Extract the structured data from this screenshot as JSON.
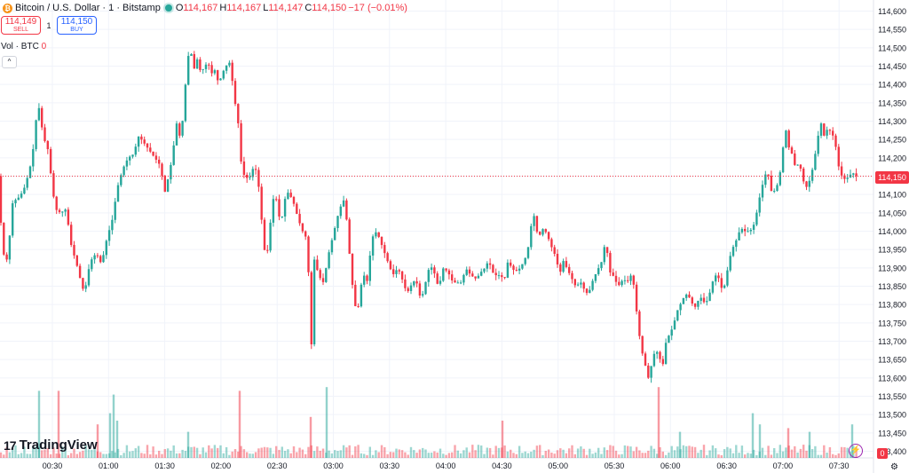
{
  "header": {
    "symbol": "Bitcoin / U.S. Dollar · 1 · Bitstamp",
    "coin_icon": "bitcoin-icon",
    "open_label": "O",
    "open": "114,167",
    "high_label": "H",
    "high": "114,167",
    "low_label": "L",
    "low": "114,147",
    "close_label": "C",
    "close": "114,150",
    "change": "−17 (−0.01%)"
  },
  "trade": {
    "sell_price": "114,149",
    "sell_label": "SELL",
    "spread": "1",
    "buy_price": "114,150",
    "buy_label": "BUY"
  },
  "volume": {
    "label": "Vol · BTC",
    "value": "0"
  },
  "logo": {
    "mark": "17",
    "text": "TradingView"
  },
  "current_price_label": "114,150",
  "volume_tag": "0",
  "colors": {
    "up": "#26a69a",
    "down": "#f23645",
    "grid": "#f0f3fa",
    "axis_text": "#131722"
  },
  "chart_data": {
    "type": "candlestick",
    "title": "Bitcoin / U.S. Dollar · 1 · Bitstamp",
    "ylim": [
      113400,
      114600
    ],
    "y_ticks": [
      114600,
      114550,
      114500,
      114450,
      114400,
      114350,
      114300,
      114250,
      114200,
      114150,
      114100,
      114050,
      114000,
      113950,
      113900,
      113850,
      113800,
      113750,
      113700,
      113650,
      113600,
      113550,
      113500,
      113450,
      113400
    ],
    "y_tick_labels": [
      "114,600",
      "114,550",
      "114,500",
      "114,450",
      "114,400",
      "114,350",
      "114,300",
      "114,250",
      "114,200",
      "114,150",
      "114,100",
      "114,050",
      "114,000",
      "113,950",
      "113,900",
      "113,850",
      "113,800",
      "113,750",
      "113,700",
      "113,650",
      "113,600",
      "113,550",
      "113,500",
      "113,450",
      "113,400"
    ],
    "x_ticks": [
      "00:30",
      "01:00",
      "01:30",
      "02:00",
      "02:30",
      "03:00",
      "03:30",
      "04:00",
      "04:30",
      "05:00",
      "05:30",
      "06:00",
      "06:30",
      "07:00",
      "07:30"
    ],
    "current_price": 114150,
    "grid": true,
    "price_path": [
      [
        0,
        114100
      ],
      [
        2,
        114040
      ],
      [
        6,
        113935
      ],
      [
        10,
        113920
      ],
      [
        16,
        114080
      ],
      [
        22,
        114090
      ],
      [
        28,
        114110
      ],
      [
        33,
        114150
      ],
      [
        38,
        114200
      ],
      [
        42,
        114300
      ],
      [
        46,
        114340
      ],
      [
        50,
        114260
      ],
      [
        56,
        114220
      ],
      [
        60,
        114130
      ],
      [
        64,
        114060
      ],
      [
        70,
        114050
      ],
      [
        76,
        114060
      ],
      [
        82,
        113960
      ],
      [
        88,
        113910
      ],
      [
        94,
        113850
      ],
      [
        97,
        113830
      ],
      [
        100,
        113880
      ],
      [
        104,
        113920
      ],
      [
        110,
        113940
      ],
      [
        116,
        113910
      ],
      [
        122,
        113980
      ],
      [
        128,
        114030
      ],
      [
        134,
        114120
      ],
      [
        140,
        114170
      ],
      [
        146,
        114200
      ],
      [
        152,
        114210
      ],
      [
        158,
        114260
      ],
      [
        164,
        114240
      ],
      [
        170,
        114220
      ],
      [
        176,
        114200
      ],
      [
        182,
        114180
      ],
      [
        188,
        114100
      ],
      [
        192,
        114160
      ],
      [
        196,
        114200
      ],
      [
        200,
        114300
      ],
      [
        204,
        114260
      ],
      [
        208,
        114310
      ],
      [
        212,
        114450
      ],
      [
        214,
        114480
      ],
      [
        216,
        114500
      ],
      [
        220,
        114440
      ],
      [
        224,
        114470
      ],
      [
        228,
        114430
      ],
      [
        232,
        114450
      ],
      [
        236,
        114460
      ],
      [
        240,
        114430
      ],
      [
        244,
        114440
      ],
      [
        248,
        114400
      ],
      [
        252,
        114430
      ],
      [
        256,
        114450
      ],
      [
        260,
        114460
      ],
      [
        264,
        114400
      ],
      [
        268,
        114320
      ],
      [
        271,
        114280
      ],
      [
        274,
        114160
      ],
      [
        278,
        114150
      ],
      [
        282,
        114140
      ],
      [
        288,
        114180
      ],
      [
        292,
        114150
      ],
      [
        296,
        114040
      ],
      [
        300,
        113940
      ],
      [
        304,
        113950
      ],
      [
        308,
        114080
      ],
      [
        312,
        114100
      ],
      [
        316,
        114040
      ],
      [
        320,
        114040
      ],
      [
        324,
        114110
      ],
      [
        328,
        114100
      ],
      [
        332,
        114080
      ],
      [
        338,
        114030
      ],
      [
        344,
        113990
      ],
      [
        348,
        113980
      ],
      [
        352,
        113660
      ],
      [
        356,
        113940
      ],
      [
        360,
        113880
      ],
      [
        366,
        113860
      ],
      [
        372,
        113940
      ],
      [
        378,
        114000
      ],
      [
        384,
        114060
      ],
      [
        390,
        114090
      ],
      [
        396,
        113920
      ],
      [
        400,
        113820
      ],
      [
        404,
        113770
      ],
      [
        408,
        113850
      ],
      [
        412,
        113880
      ],
      [
        416,
        113860
      ],
      [
        420,
        113980
      ],
      [
        426,
        114000
      ],
      [
        432,
        113960
      ],
      [
        438,
        113920
      ],
      [
        444,
        113880
      ],
      [
        450,
        113900
      ],
      [
        456,
        113860
      ],
      [
        460,
        113830
      ],
      [
        464,
        113850
      ],
      [
        470,
        113870
      ],
      [
        476,
        113810
      ],
      [
        480,
        113850
      ],
      [
        486,
        113910
      ],
      [
        492,
        113880
      ],
      [
        496,
        113840
      ],
      [
        500,
        113900
      ],
      [
        506,
        113890
      ],
      [
        512,
        113860
      ],
      [
        518,
        113860
      ],
      [
        522,
        113860
      ],
      [
        526,
        113900
      ],
      [
        532,
        113880
      ],
      [
        538,
        113870
      ],
      [
        544,
        113890
      ],
      [
        548,
        113900
      ],
      [
        552,
        113920
      ],
      [
        558,
        113880
      ],
      [
        564,
        113880
      ],
      [
        570,
        113870
      ],
      [
        574,
        113920
      ],
      [
        578,
        113900
      ],
      [
        582,
        113890
      ],
      [
        588,
        113900
      ],
      [
        594,
        113930
      ],
      [
        598,
        113970
      ],
      [
        602,
        114060
      ],
      [
        606,
        114000
      ],
      [
        610,
        113990
      ],
      [
        614,
        114010
      ],
      [
        618,
        113990
      ],
      [
        624,
        113950
      ],
      [
        628,
        113930
      ],
      [
        632,
        113880
      ],
      [
        636,
        113920
      ],
      [
        640,
        113900
      ],
      [
        644,
        113880
      ],
      [
        650,
        113850
      ],
      [
        656,
        113860
      ],
      [
        662,
        113830
      ],
      [
        666,
        113840
      ],
      [
        670,
        113870
      ],
      [
        676,
        113900
      ],
      [
        680,
        113920
      ],
      [
        684,
        113980
      ],
      [
        688,
        113890
      ],
      [
        692,
        113880
      ],
      [
        698,
        113850
      ],
      [
        704,
        113870
      ],
      [
        708,
        113860
      ],
      [
        712,
        113880
      ],
      [
        716,
        113850
      ],
      [
        720,
        113750
      ],
      [
        724,
        113680
      ],
      [
        728,
        113640
      ],
      [
        732,
        113600
      ],
      [
        736,
        113640
      ],
      [
        740,
        113680
      ],
      [
        744,
        113660
      ],
      [
        748,
        113630
      ],
      [
        752,
        113700
      ],
      [
        756,
        113720
      ],
      [
        760,
        113740
      ],
      [
        764,
        113780
      ],
      [
        768,
        113800
      ],
      [
        772,
        113820
      ],
      [
        776,
        113830
      ],
      [
        780,
        113810
      ],
      [
        784,
        113790
      ],
      [
        788,
        113810
      ],
      [
        792,
        113820
      ],
      [
        796,
        113800
      ],
      [
        800,
        113820
      ],
      [
        804,
        113860
      ],
      [
        808,
        113880
      ],
      [
        812,
        113870
      ],
      [
        816,
        113830
      ],
      [
        820,
        113880
      ],
      [
        824,
        113930
      ],
      [
        828,
        113960
      ],
      [
        832,
        113980
      ],
      [
        836,
        114010
      ],
      [
        840,
        114000
      ],
      [
        846,
        114000
      ],
      [
        850,
        114010
      ],
      [
        854,
        114050
      ],
      [
        858,
        114100
      ],
      [
        862,
        114140
      ],
      [
        866,
        114170
      ],
      [
        870,
        114110
      ],
      [
        874,
        114110
      ],
      [
        878,
        114130
      ],
      [
        882,
        114180
      ],
      [
        886,
        114290
      ],
      [
        890,
        114230
      ],
      [
        894,
        114210
      ],
      [
        898,
        114170
      ],
      [
        902,
        114190
      ],
      [
        906,
        114140
      ],
      [
        910,
        114120
      ],
      [
        914,
        114140
      ],
      [
        918,
        114180
      ],
      [
        922,
        114240
      ],
      [
        926,
        114300
      ],
      [
        930,
        114260
      ],
      [
        934,
        114280
      ],
      [
        938,
        114270
      ],
      [
        942,
        114250
      ],
      [
        946,
        114180
      ],
      [
        950,
        114150
      ],
      [
        954,
        114140
      ],
      [
        958,
        114150
      ],
      [
        962,
        114160
      ],
      [
        966,
        114150
      ]
    ],
    "volumes": [
      [
        44,
        0.9
      ],
      [
        66,
        0.9
      ],
      [
        110,
        0.45
      ],
      [
        124,
        0.6
      ],
      [
        128,
        0.85
      ],
      [
        132,
        0.5
      ],
      [
        212,
        0.35
      ],
      [
        270,
        0.9
      ],
      [
        350,
        0.55
      ],
      [
        368,
        0.95
      ],
      [
        566,
        0.5
      ],
      [
        742,
        0.95
      ],
      [
        766,
        0.35
      ],
      [
        848,
        0.6
      ],
      [
        856,
        0.45
      ],
      [
        888,
        0.4
      ],
      [
        912,
        0.35
      ],
      [
        960,
        0.45
      ]
    ]
  }
}
